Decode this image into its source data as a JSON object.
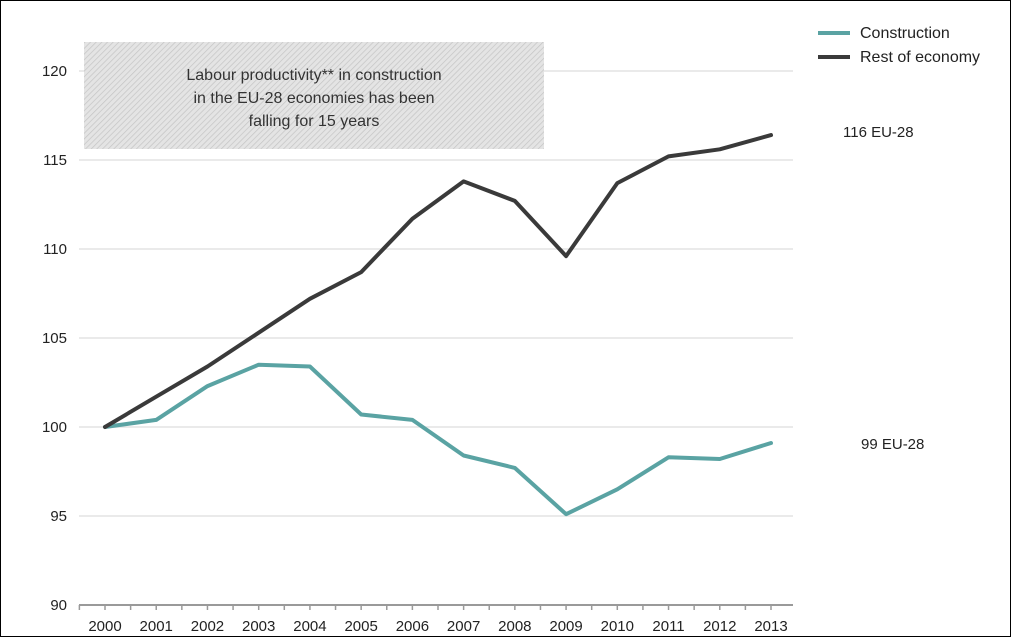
{
  "chart_data": {
    "type": "line",
    "title": "",
    "xlabel": "",
    "ylabel": "",
    "x": [
      "2000",
      "2001",
      "2002",
      "2003",
      "2004",
      "2005",
      "2006",
      "2007",
      "2008",
      "2009",
      "2010",
      "2011",
      "2012",
      "2013"
    ],
    "ylim": [
      90,
      120
    ],
    "yticks": [
      90,
      95,
      100,
      105,
      110,
      115,
      120
    ],
    "grid": true,
    "legend_position": "top-right",
    "series": [
      {
        "name": "Construction",
        "color": "#5aa3a3",
        "values": [
          100.0,
          100.4,
          102.3,
          103.5,
          103.4,
          100.7,
          100.4,
          98.4,
          97.7,
          95.1,
          96.5,
          98.3,
          98.2,
          99.1
        ]
      },
      {
        "name": "Rest of economy",
        "color": "#3a3a3a",
        "values": [
          100.0,
          101.7,
          103.4,
          105.3,
          107.2,
          108.7,
          111.7,
          113.8,
          112.7,
          109.6,
          113.7,
          115.2,
          115.6,
          116.4
        ]
      }
    ],
    "end_labels": [
      "116 EU-28",
      "99 EU-28"
    ],
    "annotation_lines": [
      "Labour productivity** in construction",
      "in the EU-28 economies has been",
      "falling for 15 years"
    ]
  }
}
